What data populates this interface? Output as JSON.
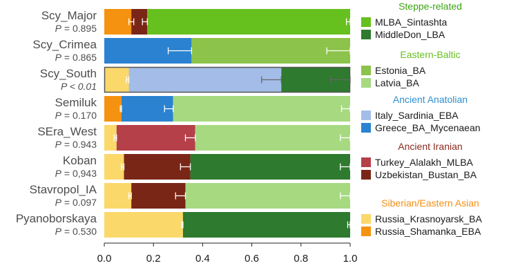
{
  "chart_data": {
    "type": "bar",
    "orientation": "horizontal",
    "stacked": true,
    "xlim": [
      0,
      1
    ],
    "x_ticks": [
      0,
      0.2,
      0.4,
      0.6,
      0.8,
      1
    ],
    "x_tick_labels": [
      "0.0",
      "0.2",
      "0.4",
      "0.6",
      "0.8",
      "1.0"
    ],
    "rows": [
      {
        "name": "Scy_Major",
        "p_label": "P",
        "p_rel": "= 0.895",
        "p_italic": false,
        "highlight": false,
        "segments": [
          {
            "component": "Russia_Shamanka_EBA",
            "value": 0.11
          },
          {
            "component": "Uzbekistan_Bustan_BA",
            "value": 0.065
          },
          {
            "component": "MLBA_Sintashta",
            "value": 0.825
          }
        ],
        "error_bars": [
          {
            "at": 0.11,
            "low": 0.1,
            "high": 0.12
          },
          {
            "at": 0.175,
            "low": 0.155,
            "high": 0.175
          },
          {
            "at": 1.0,
            "low": 0.985,
            "high": 1.0
          }
        ]
      },
      {
        "name": "Scy_Crimea",
        "p_label": "P",
        "p_rel": "= 0.865",
        "p_italic": false,
        "highlight": false,
        "segments": [
          {
            "component": "Greece_BA_Mycenaean",
            "value": 0.355
          },
          {
            "component": "Estonia_BA",
            "value": 0.645
          }
        ],
        "error_bars": [
          {
            "at": 0.355,
            "low": 0.26,
            "high": 0.355
          },
          {
            "at": 1.0,
            "low": 0.905,
            "high": 1.0
          }
        ]
      },
      {
        "name": "Scy_South",
        "p_label": "P",
        "p_rel": "< 0.01",
        "p_italic": true,
        "highlight": true,
        "segments": [
          {
            "component": "Russia_Krasnoyarsk_BA",
            "value": 0.1
          },
          {
            "component": "Italy_Sardinia_EBA",
            "value": 0.62
          },
          {
            "component": "MiddleDon_LBA",
            "value": 0.28
          }
        ],
        "error_bars": [
          {
            "at": 0.1,
            "low": 0.09,
            "high": 0.1
          },
          {
            "at": 0.72,
            "low": 0.64,
            "high": 0.72
          },
          {
            "at": 1.0,
            "low": 0.92,
            "high": 1.0
          }
        ]
      },
      {
        "name": "Semiluk",
        "p_label": "P",
        "p_rel": "= 0.170",
        "p_italic": false,
        "highlight": false,
        "segments": [
          {
            "component": "Russia_Shamanka_EBA",
            "value": 0.07
          },
          {
            "component": "Greece_BA_Mycenaean",
            "value": 0.21
          },
          {
            "component": "Latvia_BA",
            "value": 0.72
          }
        ],
        "error_bars": [
          {
            "at": 0.07,
            "low": 0.065,
            "high": 0.07
          },
          {
            "at": 0.28,
            "low": 0.245,
            "high": 0.28
          },
          {
            "at": 1.0,
            "low": 0.965,
            "high": 1.0
          }
        ]
      },
      {
        "name": "SEra_West",
        "p_label": "P",
        "p_rel": "= 0.943",
        "p_italic": false,
        "highlight": false,
        "segments": [
          {
            "component": "Russia_Krasnoyarsk_BA",
            "value": 0.05
          },
          {
            "component": "Turkey_Alalakh_MLBA",
            "value": 0.32
          },
          {
            "component": "Latvia_BA",
            "value": 0.63
          }
        ],
        "error_bars": [
          {
            "at": 0.05,
            "low": 0.04,
            "high": 0.05
          },
          {
            "at": 0.37,
            "low": 0.33,
            "high": 0.37
          },
          {
            "at": 1.0,
            "low": 0.96,
            "high": 1.0
          }
        ]
      },
      {
        "name": "Koban",
        "p_label": "P",
        "p_rel": "= 0,943",
        "p_italic": false,
        "highlight": false,
        "segments": [
          {
            "component": "Russia_Krasnoyarsk_BA",
            "value": 0.08
          },
          {
            "component": "Uzbekistan_Bustan_BA",
            "value": 0.27
          },
          {
            "component": "MiddleDon_LBA",
            "value": 0.65
          }
        ],
        "error_bars": [
          {
            "at": 0.08,
            "low": 0.07,
            "high": 0.08
          },
          {
            "at": 0.35,
            "low": 0.31,
            "high": 0.35
          },
          {
            "at": 1.0,
            "low": 0.96,
            "high": 1.0
          }
        ]
      },
      {
        "name": "Stavropol_IA",
        "p_label": "P",
        "p_rel": "= 0.097",
        "p_italic": false,
        "highlight": false,
        "segments": [
          {
            "component": "Russia_Krasnoyarsk_BA",
            "value": 0.11
          },
          {
            "component": "Uzbekistan_Bustan_BA",
            "value": 0.22
          },
          {
            "component": "Latvia_BA",
            "value": 0.67
          }
        ],
        "error_bars": [
          {
            "at": 0.11,
            "low": 0.1,
            "high": 0.11
          },
          {
            "at": 0.33,
            "low": 0.29,
            "high": 0.33
          },
          {
            "at": 1.0,
            "low": 0.96,
            "high": 1.0
          }
        ]
      },
      {
        "name": "Pyanoborskaya",
        "p_label": "P",
        "p_rel": "= 0.530",
        "p_italic": false,
        "highlight": false,
        "segments": [
          {
            "component": "Russia_Krasnoyarsk_BA",
            "value": 0.32
          },
          {
            "component": "MiddleDon_LBA",
            "value": 0.68
          }
        ],
        "error_bars": [
          {
            "at": 0.32,
            "low": 0.315,
            "high": 0.32
          },
          {
            "at": 1.0,
            "low": 0.99,
            "high": 1.0
          }
        ]
      }
    ],
    "legend": {
      "placement": "right",
      "groups": [
        {
          "title": "Steppe-related",
          "color": "#3aa50f",
          "items": [
            {
              "label": "MLBA_Sintashta",
              "color": "#66c01e"
            },
            {
              "label": "MiddleDon_LBA",
              "color": "#2e7a2e"
            }
          ]
        },
        {
          "title": "Eastern-Baltic",
          "color": "#66c01e",
          "items": [
            {
              "label": "Estonia_BA",
              "color": "#8cc34a"
            },
            {
              "label": "Latvia_BA",
              "color": "#a6d980"
            }
          ]
        },
        {
          "title": "Ancient Anatolian",
          "color": "#2e8fd0",
          "items": [
            {
              "label": "Italy_Sardinia_EBA",
              "color": "#a3bde8"
            },
            {
              "label": "Greece_BA_Mycenaean",
              "color": "#2b82d0"
            }
          ]
        },
        {
          "title": "Ancient Iranian",
          "color": "#8b2a1e",
          "items": [
            {
              "label": "Turkey_Alalakh_MLBA",
              "color": "#b5404a"
            },
            {
              "label": "Uzbekistan_Bustan_BA",
              "color": "#7a2616"
            }
          ]
        },
        {
          "title": "Siberian/Eastern Asian",
          "color": "#f29016",
          "items": [
            {
              "label": "Russia_Krasnoyarsk_BA",
              "color": "#fbd86a"
            },
            {
              "label": "Russia_Shamanka_EBA",
              "color": "#f5920f"
            }
          ]
        }
      ]
    }
  }
}
